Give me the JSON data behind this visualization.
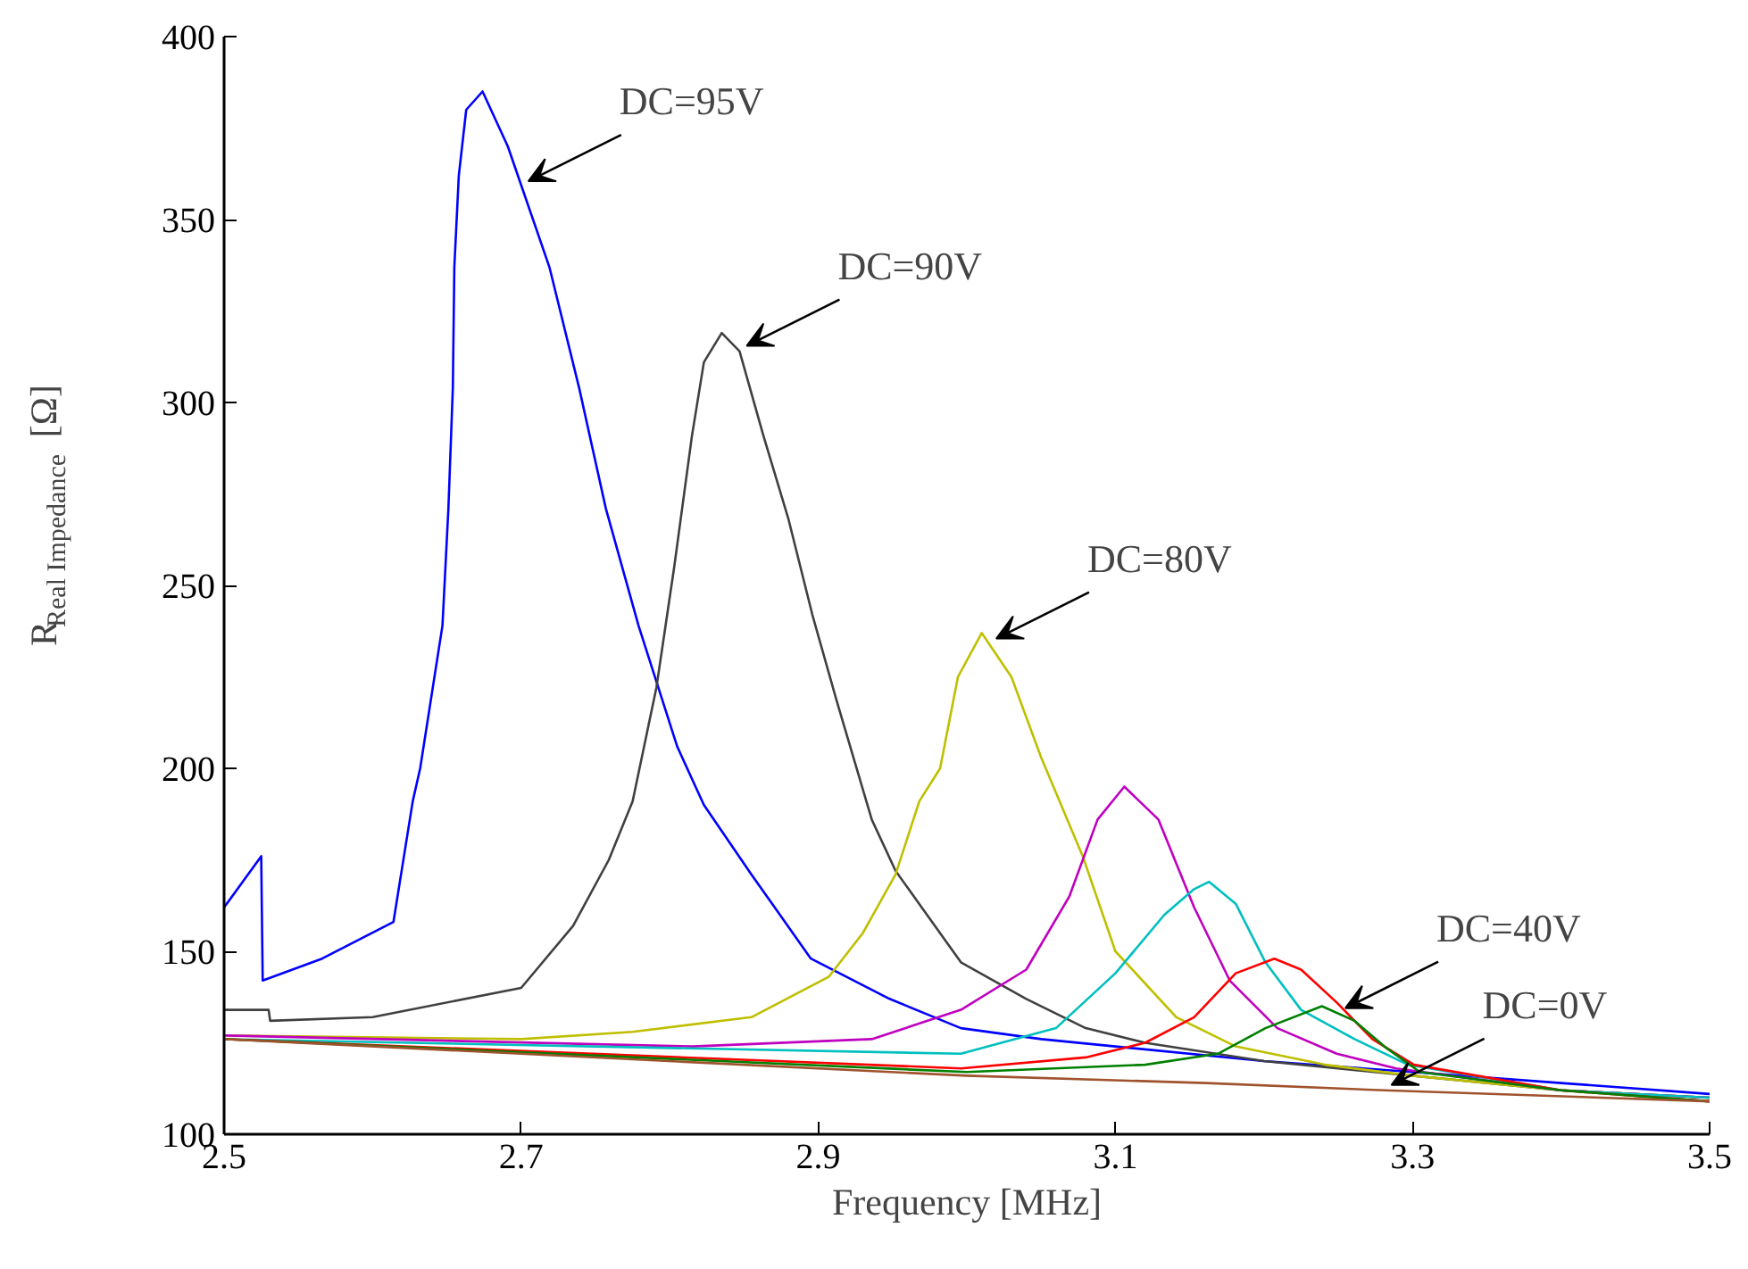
{
  "chart_data": {
    "type": "line",
    "xlabel": "Frequency [MHz]",
    "ylabel": "R$_{Real Impedance}$ [Ω]",
    "xlim": [
      2.5,
      3.5
    ],
    "ylim": [
      100,
      400
    ],
    "xticks": [
      2.5,
      2.7,
      2.9,
      3.1,
      3.3,
      3.5
    ],
    "yticks": [
      100,
      150,
      200,
      250,
      300,
      350,
      400
    ],
    "grid": false,
    "line_style": "solid",
    "marker": "none",
    "series": [
      {
        "color": "#0000ff",
        "x": [
          2.5,
          2.525,
          2.526,
          2.566,
          2.614,
          2.627,
          2.632,
          2.647,
          2.651,
          2.654,
          2.655,
          2.658,
          2.663,
          2.674,
          2.691,
          2.719,
          2.739,
          2.757,
          2.779,
          2.805,
          2.823,
          2.855,
          2.895,
          2.948,
          2.996,
          3.05,
          3.1,
          3.2,
          3.3,
          3.4,
          3.5
        ],
        "values": [
          162,
          176,
          142,
          148,
          158,
          191,
          200,
          239,
          271,
          304,
          337,
          362,
          380,
          385,
          370,
          337,
          304,
          271,
          239,
          206,
          190,
          171,
          148,
          137,
          129,
          126,
          124,
          120,
          117,
          114,
          111
        ]
      },
      {
        "color": "#404040",
        "x": [
          2.5,
          2.53,
          2.531,
          2.6,
          2.7,
          2.735,
          2.759,
          2.775,
          2.791,
          2.803,
          2.815,
          2.823,
          2.835,
          2.847,
          2.863,
          2.88,
          2.896,
          2.912,
          2.936,
          2.952,
          2.996,
          3.04,
          3.08,
          3.12,
          3.2,
          3.3,
          3.4,
          3.5
        ],
        "values": [
          134,
          134,
          131,
          132,
          140,
          157,
          175,
          191,
          222,
          255,
          291,
          311,
          319,
          314,
          291,
          268,
          242,
          219,
          186,
          172,
          147,
          137,
          129,
          125,
          120,
          116,
          112,
          110
        ]
      },
      {
        "color": "#bfbf00",
        "x": [
          2.5,
          2.7,
          2.775,
          2.855,
          2.907,
          2.93,
          2.952,
          2.968,
          2.982,
          2.994,
          3.01,
          3.03,
          3.05,
          3.078,
          3.1,
          3.141,
          3.181,
          3.241,
          3.3,
          3.4,
          3.5
        ],
        "values": [
          127,
          126,
          128,
          132,
          143,
          155,
          171,
          191,
          200,
          225,
          237,
          225,
          203,
          176,
          150,
          132,
          124,
          119,
          116,
          112,
          110
        ]
      },
      {
        "color": "#bf00bf",
        "x": [
          2.5,
          2.815,
          2.936,
          2.996,
          3.04,
          3.069,
          3.088,
          3.106,
          3.129,
          3.153,
          3.177,
          3.209,
          3.249,
          3.289,
          3.4,
          3.5
        ],
        "values": [
          127,
          124,
          126,
          134,
          145,
          165,
          186,
          195,
          186,
          162,
          142,
          129,
          122,
          118,
          112,
          110
        ]
      },
      {
        "color": "#00bfbf",
        "x": [
          2.5,
          2.996,
          3.06,
          3.1,
          3.133,
          3.153,
          3.163,
          3.181,
          3.201,
          3.225,
          3.261,
          3.297,
          3.4,
          3.5
        ],
        "values": [
          126,
          122,
          129,
          144,
          160,
          167,
          169,
          163,
          147,
          134,
          126,
          119,
          112,
          110
        ]
      },
      {
        "color": "#ff0000",
        "x": [
          2.5,
          2.996,
          3.08,
          3.12,
          3.153,
          3.181,
          3.207,
          3.225,
          3.249,
          3.273,
          3.301,
          3.4,
          3.5
        ],
        "values": [
          126,
          118,
          121,
          125,
          132,
          144,
          148,
          145,
          136,
          126,
          119,
          112,
          109
        ]
      },
      {
        "color": "#008000",
        "x": [
          2.5,
          3.0,
          3.12,
          3.169,
          3.201,
          3.239,
          3.261,
          3.281,
          3.305,
          3.4,
          3.5
        ],
        "values": [
          126,
          117,
          119,
          122,
          129,
          135,
          131,
          124,
          117,
          112,
          109
        ]
      },
      {
        "color": "#a0522d",
        "x": [
          2.5,
          3.0,
          3.161,
          3.281,
          3.5
        ],
        "values": [
          126,
          116,
          114,
          112,
          109
        ]
      }
    ],
    "annotations": [
      {
        "text": "DC=95V",
        "x": 2.7,
        "y": 359
      },
      {
        "text": "DC=90V",
        "x": 2.847,
        "y": 314
      },
      {
        "text": "DC=80V",
        "x": 3.015,
        "y": 234
      },
      {
        "text": "DC=40V",
        "x": 3.25,
        "y": 133
      },
      {
        "text": "DC=0V",
        "x": 3.281,
        "y": 112
      }
    ]
  }
}
